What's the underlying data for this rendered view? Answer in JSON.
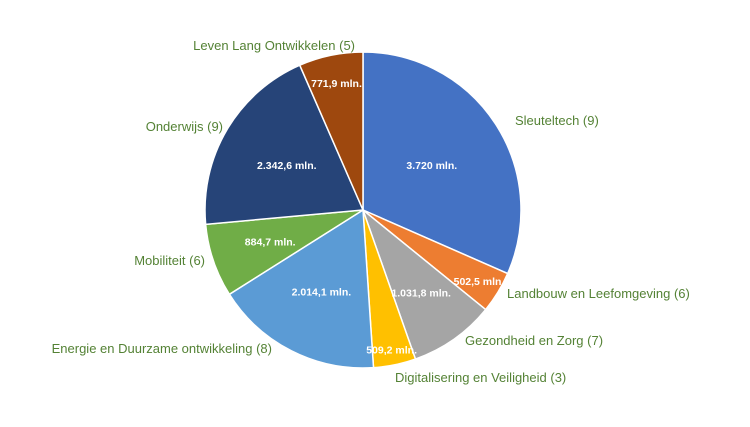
{
  "chart_data": {
    "type": "pie",
    "title": "",
    "unit": "mln.",
    "slices": [
      {
        "label": "Sleuteltech (9)",
        "value": 3720.0,
        "value_label": "3.720 mln.",
        "color": "#4472C4"
      },
      {
        "label": "Landbouw en Leefomgeving (6)",
        "value": 502.5,
        "value_label": "502,5 mln.",
        "color": "#ED7D31"
      },
      {
        "label": "Gezondheid en Zorg (7)",
        "value": 1031.8,
        "value_label": "1.031,8 mln.",
        "color": "#A5A5A5"
      },
      {
        "label": "Digitalisering en Veiligheid (3)",
        "value": 509.2,
        "value_label": "509,2 mln.",
        "color": "#FFC000"
      },
      {
        "label": "Energie en Duurzame ontwikkeling (8)",
        "value": 2014.1,
        "value_label": "2.014,1 mln.",
        "color": "#5B9BD5"
      },
      {
        "label": "Mobiliteit (6)",
        "value": 884.7,
        "value_label": "884,7 mln.",
        "color": "#70AD47"
      },
      {
        "label": "Onderwijs (9)",
        "value": 2342.6,
        "value_label": "2.342,6 mln.",
        "color": "#264478"
      },
      {
        "label": "Leven Lang Ontwikkelen (5)",
        "value": 771.9,
        "value_label": "771,9 mln.",
        "color": "#9E480E"
      }
    ],
    "label_color": "#548235",
    "start_angle": "12 o'clock",
    "direction": "clockwise",
    "legend": "none"
  }
}
